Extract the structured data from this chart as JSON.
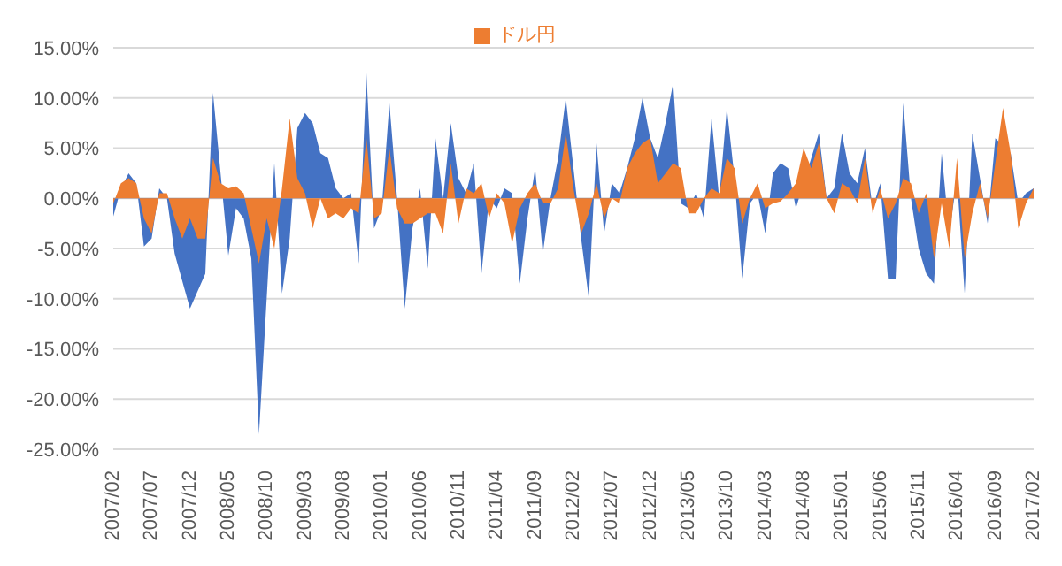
{
  "chart_data": {
    "type": "area",
    "categories": [
      "2007/02",
      null,
      null,
      null,
      null,
      "2007/07",
      null,
      null,
      null,
      null,
      "2007/12",
      null,
      null,
      null,
      null,
      "2008/05",
      null,
      null,
      null,
      null,
      "2008/10",
      null,
      null,
      null,
      null,
      "2009/03",
      null,
      null,
      null,
      null,
      "2009/08",
      null,
      null,
      null,
      null,
      "2010/01",
      null,
      null,
      null,
      null,
      "2010/06",
      null,
      null,
      null,
      null,
      "2010/11",
      null,
      null,
      null,
      null,
      "2011/04",
      null,
      null,
      null,
      null,
      "2011/09",
      null,
      null,
      null,
      null,
      "2012/02",
      null,
      null,
      null,
      null,
      "2012/07",
      null,
      null,
      null,
      null,
      "2012/12",
      null,
      null,
      null,
      null,
      "2013/05",
      null,
      null,
      null,
      null,
      "2013/10",
      null,
      null,
      null,
      null,
      "2014/03",
      null,
      null,
      null,
      null,
      "2014/08",
      null,
      null,
      null,
      null,
      "2015/01",
      null,
      null,
      null,
      null,
      "2015/06",
      null,
      null,
      null,
      null,
      "2015/11",
      null,
      null,
      null,
      null,
      "2016/04",
      null,
      null,
      null,
      null,
      "2016/09",
      null,
      null,
      null,
      null,
      "2017/02"
    ],
    "series": [
      {
        "color": "#4472c4",
        "values": [
          -1.8,
          1,
          2.5,
          1.5,
          -4.8,
          -4,
          1,
          0,
          -5.5,
          null,
          -11,
          null,
          -7.5,
          10.5,
          null,
          -5.7,
          -1,
          -2,
          -6,
          -23.5,
          null,
          3.5,
          -9.5,
          -4,
          7,
          8.5,
          7.5,
          4.5,
          4,
          1,
          0,
          0.5,
          -6.5,
          12.5,
          -3,
          -1,
          9.5,
          0,
          -11,
          -3,
          1,
          -7,
          6,
          0,
          7.5,
          2,
          0.5,
          3.5,
          -7.5,
          0,
          -1,
          1,
          0.5,
          -8.5,
          -2,
          3,
          -5.5,
          0,
          4,
          10,
          3,
          -4,
          -10,
          5.5,
          -3.5,
          1.5,
          0.5,
          3,
          6,
          10,
          6,
          4,
          7.5,
          11.5,
          -0.5,
          -1,
          0.5,
          -2,
          8,
          0,
          9,
          2,
          -8,
          -0.5,
          0.5,
          -3.5,
          2.5,
          3.5,
          3,
          -1,
          null,
          null,
          6.5,
          0,
          1,
          6.5,
          2.5,
          1.5,
          5,
          -1,
          1.5,
          -8,
          -8,
          9.5,
          0,
          -5,
          -7.5,
          -8.5,
          4.5,
          -3.5,
          2,
          -9.5,
          6.5,
          2,
          -2.5,
          6,
          null,
          4.5,
          -0.5,
          0.5,
          1
        ]
      },
      {
        "name": "ドル円",
        "color": "#ed7d31",
        "values": [
          -0.5,
          1.5,
          2,
          1.5,
          -2,
          -3.5,
          0.5,
          0.5,
          -2,
          -4,
          -2,
          -4,
          -4,
          4,
          1.5,
          1,
          1.2,
          0.5,
          -3,
          -6.5,
          -2,
          -5,
          1,
          8,
          2,
          0.5,
          -3,
          0,
          -2,
          -1.5,
          -2,
          -1,
          -1.5,
          6,
          -2,
          -1.5,
          5,
          -1,
          -2.5,
          -2.5,
          -2,
          -1.5,
          -1.5,
          -3.5,
          3.5,
          -2.5,
          1,
          0.5,
          1.5,
          -2,
          0.5,
          -0.5,
          -4.5,
          -1,
          0.5,
          1.5,
          -0.5,
          -0.5,
          1,
          6.5,
          1,
          -3.5,
          -1.5,
          1.5,
          -2,
          0,
          -0.5,
          3,
          4.5,
          5.5,
          6,
          1.5,
          2.5,
          3.5,
          3,
          -1.5,
          -1.5,
          0,
          1,
          0.5,
          4,
          3,
          -2.5,
          0,
          1.5,
          -1,
          -0.5,
          -0.3,
          0.5,
          1.5,
          5,
          3,
          5.5,
          0,
          -1.5,
          1.5,
          1,
          -0.5,
          4,
          -1.5,
          1,
          -2,
          -0.5,
          2,
          1.5,
          -1.5,
          0.5,
          -6,
          -0.5,
          -5,
          4,
          -6,
          -1.5,
          1.5,
          -2,
          3.5,
          9,
          4.5,
          -3,
          -0.5,
          1
        ]
      }
    ],
    "ylim": [
      -25,
      15
    ],
    "yticks": [
      {
        "value": -25,
        "label": "-25.00%"
      },
      {
        "value": -20,
        "label": "-20.00%"
      },
      {
        "value": -15,
        "label": "-15.00%"
      },
      {
        "value": -10,
        "label": "-10.00%"
      },
      {
        "value": -5,
        "label": "-5.00%"
      },
      {
        "value": 0,
        "label": "0.00%"
      },
      {
        "value": 5,
        "label": "5.00%"
      },
      {
        "value": 10,
        "label": "10.00%"
      },
      {
        "value": 15,
        "label": "15.00%"
      }
    ],
    "grid": "y",
    "legend": "top"
  }
}
